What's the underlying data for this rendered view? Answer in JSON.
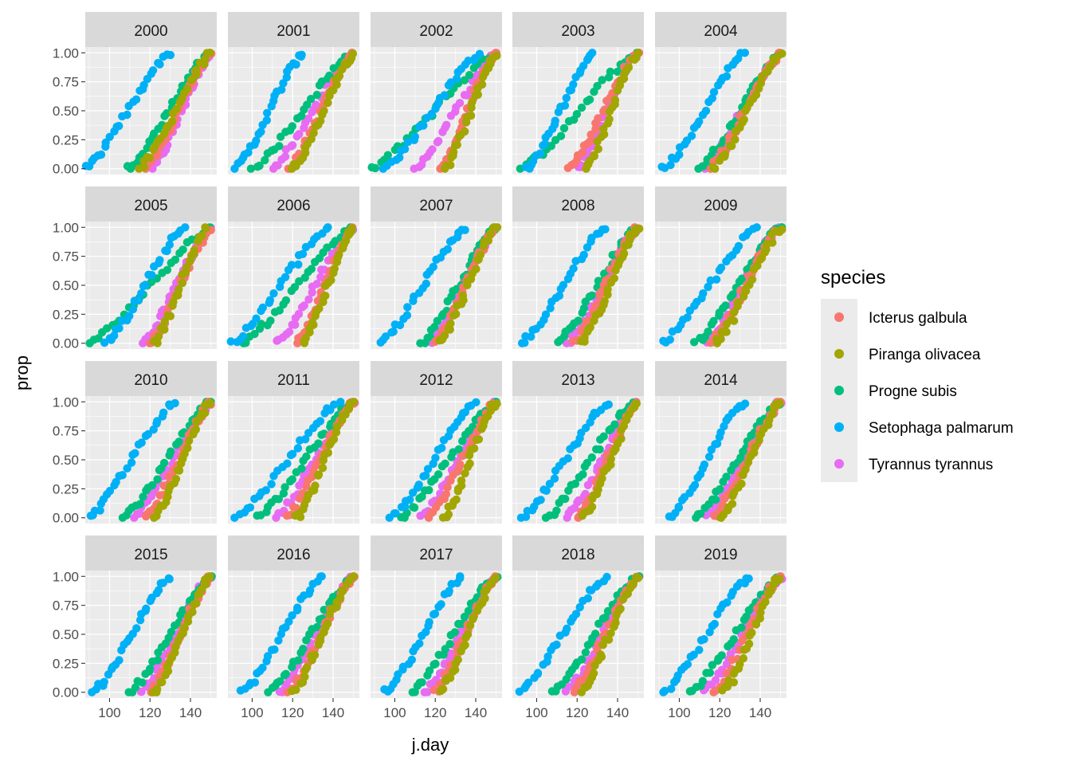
{
  "chart_data": {
    "type": "scatter",
    "facet_by": "year",
    "facet_layout": {
      "rows": 4,
      "cols": 5
    },
    "panels": [
      "2000",
      "2001",
      "2002",
      "2003",
      "2004",
      "2005",
      "2006",
      "2007",
      "2008",
      "2009",
      "2010",
      "2011",
      "2012",
      "2013",
      "2014",
      "2015",
      "2016",
      "2017",
      "2018",
      "2019"
    ],
    "xlabel": "j.day",
    "ylabel": "prop",
    "xlim": [
      88,
      153
    ],
    "ylim": [
      -0.05,
      1.05
    ],
    "x_ticks": [
      100,
      120,
      140
    ],
    "x_tick_labels": [
      "100",
      "120",
      "140"
    ],
    "y_ticks": [
      0,
      0.25,
      0.5,
      0.75,
      1
    ],
    "y_tick_labels": [
      "0.00",
      "0.25",
      "0.50",
      "0.75",
      "1.00"
    ],
    "grid": true,
    "legend": {
      "title": "species",
      "position": "right",
      "entries": [
        "Icterus galbula",
        "Piranga olivacea",
        "Progne subis",
        "Setophaga palmarum",
        "Tyrannus tyrannus"
      ]
    },
    "colors": [
      "#F8766D",
      "#A3A500",
      "#00BF7D",
      "#00B0F6",
      "#E76BF3"
    ],
    "series_order_drawn": [
      4,
      2,
      0,
      1,
      3
    ],
    "curves": {
      "2000": [
        [
          118,
          150
        ],
        [
          115,
          150
        ],
        [
          109,
          150
        ],
        [
          88,
          130
        ],
        [
          121,
          150
        ]
      ],
      "2001": [
        [
          118,
          150
        ],
        [
          120,
          150
        ],
        [
          100,
          150
        ],
        [
          92,
          125
        ],
        [
          110,
          150
        ]
      ],
      "2002": [
        [
          122,
          150
        ],
        [
          125,
          150
        ],
        [
          88,
          150
        ],
        [
          95,
          142
        ],
        [
          110,
          150
        ]
      ],
      "2003": [
        [
          116,
          150
        ],
        [
          124,
          150
        ],
        [
          92,
          150
        ],
        [
          95,
          128
        ],
        [
          120,
          150
        ]
      ],
      "2004": [
        [
          115,
          150
        ],
        [
          117,
          150
        ],
        [
          110,
          150
        ],
        [
          92,
          132
        ],
        [
          112,
          150
        ]
      ],
      "2005": [
        [
          120,
          150
        ],
        [
          122,
          148
        ],
        [
          90,
          150
        ],
        [
          98,
          137
        ],
        [
          116,
          150
        ]
      ],
      "2006": [
        [
          122,
          150
        ],
        [
          125,
          150
        ],
        [
          95,
          150
        ],
        [
          90,
          138
        ],
        [
          112,
          150
        ]
      ],
      "2007": [
        [
          120,
          150
        ],
        [
          122,
          150
        ],
        [
          113,
          150
        ],
        [
          93,
          135
        ],
        [
          118,
          150
        ]
      ],
      "2008": [
        [
          118,
          150
        ],
        [
          122,
          150
        ],
        [
          110,
          150
        ],
        [
          92,
          134
        ],
        [
          115,
          150
        ]
      ],
      "2009": [
        [
          115,
          150
        ],
        [
          118,
          150
        ],
        [
          108,
          150
        ],
        [
          92,
          138
        ],
        [
          113,
          150
        ]
      ],
      "2010": [
        [
          118,
          150
        ],
        [
          122,
          150
        ],
        [
          107,
          150
        ],
        [
          90,
          132
        ],
        [
          112,
          150
        ]
      ],
      "2011": [
        [
          117,
          150
        ],
        [
          122,
          150
        ],
        [
          103,
          150
        ],
        [
          92,
          143
        ],
        [
          112,
          150
        ]
      ],
      "2012": [
        [
          117,
          150
        ],
        [
          124,
          150
        ],
        [
          103,
          150
        ],
        [
          98,
          140
        ],
        [
          113,
          150
        ]
      ],
      "2013": [
        [
          120,
          150
        ],
        [
          123,
          150
        ],
        [
          105,
          148
        ],
        [
          93,
          135
        ],
        [
          115,
          150
        ]
      ],
      "2014": [
        [
          117,
          150
        ],
        [
          120,
          150
        ],
        [
          108,
          150
        ],
        [
          95,
          132
        ],
        [
          113,
          150
        ]
      ],
      "2015": [
        [
          120,
          150
        ],
        [
          122,
          150
        ],
        [
          110,
          150
        ],
        [
          92,
          130
        ],
        [
          115,
          150
        ]
      ],
      "2016": [
        [
          118,
          150
        ],
        [
          120,
          150
        ],
        [
          108,
          150
        ],
        [
          95,
          135
        ],
        [
          113,
          150
        ]
      ],
      "2017": [
        [
          120,
          150
        ],
        [
          122,
          150
        ],
        [
          108,
          150
        ],
        [
          95,
          133
        ],
        [
          115,
          150
        ]
      ],
      "2018": [
        [
          118,
          150
        ],
        [
          122,
          150
        ],
        [
          108,
          150
        ],
        [
          92,
          134
        ],
        [
          115,
          150
        ]
      ],
      "2019": [
        [
          117,
          150
        ],
        [
          122,
          150
        ],
        [
          105,
          150
        ],
        [
          92,
          135
        ],
        [
          112,
          150
        ]
      ]
    },
    "points_per_series": 28
  }
}
